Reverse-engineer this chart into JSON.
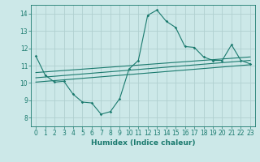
{
  "xlabel": "Humidex (Indice chaleur)",
  "ylabel": "",
  "xlim": [
    -0.5,
    23.5
  ],
  "ylim": [
    7.5,
    14.5
  ],
  "xticks": [
    0,
    1,
    2,
    3,
    4,
    5,
    6,
    7,
    8,
    9,
    10,
    11,
    12,
    13,
    14,
    15,
    16,
    17,
    18,
    19,
    20,
    21,
    22,
    23
  ],
  "yticks": [
    8,
    9,
    10,
    11,
    12,
    13,
    14
  ],
  "background_color": "#cce8e8",
  "grid_color": "#b0d0d0",
  "line_color": "#1a7a6e",
  "lines": [
    {
      "x": [
        0,
        1,
        2,
        3,
        4,
        5,
        6,
        7,
        8,
        9,
        10,
        11,
        12,
        13,
        14,
        15,
        16,
        17,
        18,
        19,
        20,
        21,
        22,
        23
      ],
      "y": [
        11.55,
        10.45,
        10.05,
        10.1,
        9.35,
        8.9,
        8.85,
        8.2,
        8.35,
        9.1,
        10.8,
        11.3,
        13.9,
        14.2,
        13.55,
        13.2,
        12.1,
        12.05,
        11.5,
        11.3,
        11.3,
        12.2,
        11.3,
        11.1
      ]
    },
    {
      "x": [
        0,
        23
      ],
      "y": [
        10.6,
        11.5
      ]
    },
    {
      "x": [
        0,
        23
      ],
      "y": [
        10.3,
        11.3
      ]
    },
    {
      "x": [
        0,
        23
      ],
      "y": [
        10.05,
        11.05
      ]
    }
  ]
}
